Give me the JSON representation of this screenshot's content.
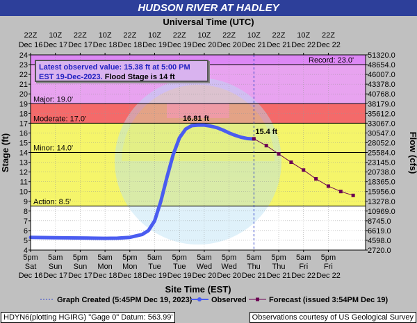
{
  "title": "HUDSON RIVER AT HADLEY",
  "top_axis_title": "Universal Time (UTC)",
  "bottom_axis_title": "Site Time (EST)",
  "ylabel_left": "Stage (ft)",
  "ylabel_right": "Flow (cfs)",
  "info": {
    "line1": "Latest observed value: 15.38 ft at 5:00 PM",
    "line2_date": "EST 19-Dec-2023.",
    "line2_flood": "Flood Stage is 14 ft"
  },
  "legend": {
    "graph_created": "Graph Created (5:45PM Dec 19, 2023)",
    "observed": "Observed",
    "forecast": "Forecast (issued 3:54PM Dec 19)"
  },
  "footer_left": "HDYN6(plotting HGIRG) \"Gage 0\" Datum:  563.99'",
  "footer_right": "Observations courtesy of US Geological Survey",
  "watermark": "NATIONAL OCEANIC AND ATMOSPHERIC ADMINISTRATION  U.S. DEPARTMENT OF COMMERCE  NOAA",
  "colors": {
    "record": "#dd88f5",
    "major": "#e8a3f0",
    "moderate": "#f46a6a",
    "minor": "#f5f56a",
    "action": "#ffffff",
    "observed": "#4a5cf0",
    "forecast": "#6b0052",
    "title_bar": "#2d3f9a"
  },
  "chart_data": {
    "type": "line",
    "title": "HUDSON RIVER AT HADLEY",
    "ylim": [
      4,
      24
    ],
    "yticks": [
      4,
      5,
      6,
      7,
      8,
      9,
      10,
      11,
      12,
      13,
      14,
      15,
      16,
      17,
      18,
      19,
      20,
      21,
      22,
      23,
      24
    ],
    "right_ticks": [
      "2720.0",
      "4598.0",
      "6619.0",
      "8745.0",
      "10969.0",
      "13278.0",
      "15956.0",
      "18365.0",
      "20738.0",
      "23145.0",
      "25584.0",
      "28052.0",
      "30547.0",
      "33067.0",
      "35612.0",
      "38179.0",
      "40768.0",
      "43378.0",
      "46007.0",
      "48654.0",
      "51320.0"
    ],
    "xlim": [
      0,
      27
    ],
    "bottom_ticks": [
      {
        "t": "5pm",
        "d": "Sat",
        "dt": "Dec 16"
      },
      {
        "t": "5am",
        "d": "Sun",
        "dt": "Dec 17"
      },
      {
        "t": "5pm",
        "d": "Sun",
        "dt": "Dec 17"
      },
      {
        "t": "5am",
        "d": "Mon",
        "dt": "Dec 18"
      },
      {
        "t": "5pm",
        "d": "Mon",
        "dt": "Dec 18"
      },
      {
        "t": "5am",
        "d": "Tue",
        "dt": "Dec 19"
      },
      {
        "t": "5pm",
        "d": "Tue",
        "dt": "Dec 19"
      },
      {
        "t": "5am",
        "d": "Wed",
        "dt": "Dec 20"
      },
      {
        "t": "5pm",
        "d": "Wed",
        "dt": "Dec 20"
      },
      {
        "t": "5am",
        "d": "Thu",
        "dt": "Dec 21"
      },
      {
        "t": "5pm",
        "d": "Thu",
        "dt": "Dec 21"
      },
      {
        "t": "5am",
        "d": "Fri",
        "dt": "Dec 22"
      },
      {
        "t": "5pm",
        "d": "Fri",
        "dt": "Dec 22"
      }
    ],
    "top_ticks": [
      {
        "t": "22Z",
        "dt": "Dec 16"
      },
      {
        "t": "10Z",
        "dt": "Dec 17"
      },
      {
        "t": "22Z",
        "dt": "Dec 17"
      },
      {
        "t": "10Z",
        "dt": "Dec 18"
      },
      {
        "t": "22Z",
        "dt": "Dec 18"
      },
      {
        "t": "10Z",
        "dt": "Dec 19"
      },
      {
        "t": "22Z",
        "dt": "Dec 19"
      },
      {
        "t": "10Z",
        "dt": "Dec 20"
      },
      {
        "t": "22Z",
        "dt": "Dec 20"
      },
      {
        "t": "10Z",
        "dt": "Dec 21"
      },
      {
        "t": "22Z",
        "dt": "Dec 21"
      },
      {
        "t": "10Z",
        "dt": "Dec 22"
      },
      {
        "t": "22Z",
        "dt": "Dec 22"
      }
    ],
    "flood_categories": [
      {
        "name": "Record: 23.0'",
        "stage": 23.0
      },
      {
        "name": "Major: 19.0'",
        "stage": 19.0
      },
      {
        "name": "Moderate: 17.0'",
        "stage": 17.0
      },
      {
        "name": "Minor: 14.0'",
        "stage": 14.0
      },
      {
        "name": "Action: 8.5'",
        "stage": 8.5
      }
    ],
    "peak_label": "16.81 ft",
    "forecast_label": "15.4 ft",
    "series": [
      {
        "name": "Observed",
        "x": [
          0,
          1,
          2,
          3,
          4,
          5,
          6,
          7,
          8,
          9,
          9.5,
          10,
          10.5,
          11,
          11.5,
          12,
          12.5,
          13,
          13.5,
          14,
          14.5,
          15,
          15.5,
          16,
          16.5,
          17,
          17.5,
          18
        ],
        "y": [
          5.3,
          5.28,
          5.26,
          5.25,
          5.24,
          5.22,
          5.2,
          5.22,
          5.3,
          5.6,
          6.0,
          7.0,
          9.0,
          11.5,
          13.8,
          15.5,
          16.4,
          16.75,
          16.8,
          16.8,
          16.7,
          16.55,
          16.3,
          16.0,
          15.75,
          15.55,
          15.42,
          15.38
        ]
      },
      {
        "name": "Forecast",
        "x": [
          18,
          19,
          20,
          21,
          22,
          23,
          24,
          25,
          26
        ],
        "y": [
          15.4,
          14.7,
          13.85,
          13.0,
          12.2,
          11.3,
          10.55,
          10.0,
          9.6
        ]
      }
    ]
  }
}
